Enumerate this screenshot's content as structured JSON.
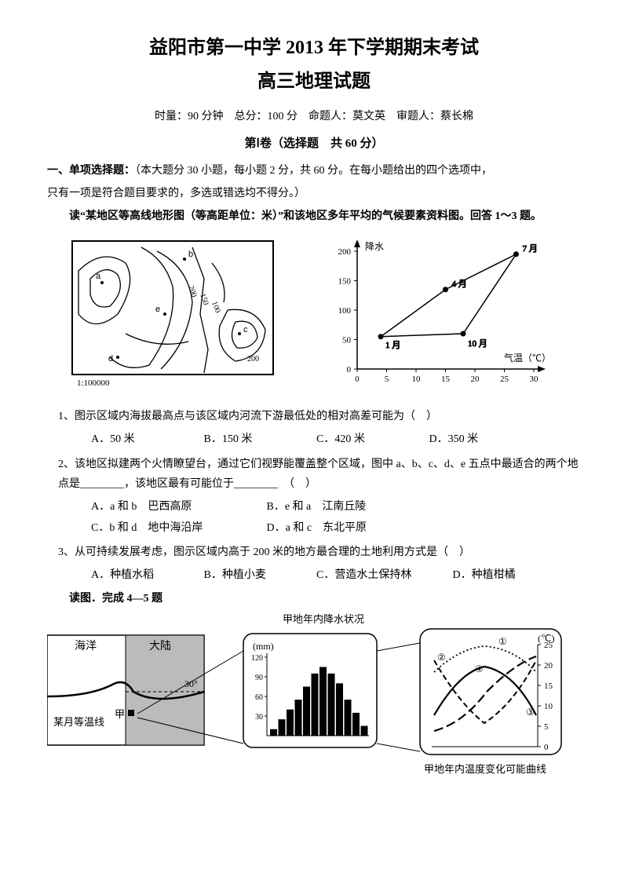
{
  "header": {
    "title_main": "益阳市第一中学 2013 年下学期期末考试",
    "title_sub": "高三地理试题",
    "meta": "时量：90 分钟　总分：100 分　命题人：莫文英　审题人：蔡长棉",
    "section": "第Ⅰ卷（选择题　共 60 分）"
  },
  "part1": {
    "heading": "一、单项选择题：",
    "desc1": "（本大题分 30 小题，每小题 2 分，共 60 分。在每小题给出的四个选项中，",
    "desc2": "只有一项是符合题目要求的，多选或错选均不得分。）",
    "intro_q13": "读“某地区等高线地形图（等高距单位：米）”和该地区多年平均的气候要素资料图。回答 1～3 题。"
  },
  "topo": {
    "contour_labels": [
      "200",
      "150",
      "100",
      "200"
    ],
    "points": [
      "a",
      "b",
      "c",
      "d",
      "e"
    ],
    "scale": "1:100000"
  },
  "climate_chart": {
    "y_label": "降水",
    "y_ticks": [
      0,
      50,
      100,
      150,
      200
    ],
    "x_label": "气温（℃）",
    "x_ticks": [
      0,
      5,
      10,
      15,
      20,
      25,
      30
    ],
    "points": [
      {
        "label": "1 月",
        "x": 4,
        "y": 55
      },
      {
        "label": "4 月",
        "x": 15,
        "y": 135
      },
      {
        "label": "7 月",
        "x": 27,
        "y": 195
      },
      {
        "label": "10 月",
        "x": 18,
        "y": 60
      }
    ],
    "line_color": "#000"
  },
  "q1": {
    "text": "1、图示区域内海拔最高点与该区域内河流下游最低处的相对高差可能为（　）",
    "A": "A．50 米",
    "B": "B．150 米",
    "C": "C．420 米",
    "D": "D．350 米"
  },
  "q2": {
    "text": "2、该地区拟建两个火情瞭望台，通过它们视野能覆盖整个区域，图中 a、b、c、d、e 五点中最适合的两个地点是________，该地区最有可能位于________　（　）",
    "A": "A．a 和 b　巴西高原",
    "B": "B．e 和 a　江南丘陵",
    "C": "C．b 和 d　地中海沿岸",
    "D": "D．a 和 c　东北平原"
  },
  "q3": {
    "text": "3、从可持续发展考虑，图示区域内高于 200 米的地方最合理的土地利用方式是（　）",
    "A": "A．种植水稻",
    "B": "B．种植小麦",
    "C": "C．营造水土保持林",
    "D": "D．种植柑橘"
  },
  "intro_q45": "读图．完成 4—5 题",
  "fig3": {
    "left_labels": {
      "ocean": "海洋",
      "land": "大陆",
      "isotherm": "某月等温线",
      "jia": "甲",
      "lat": "30°"
    },
    "mid_title": "甲地年内降水状况",
    "mid_unit": "(mm)",
    "mid_yticks": [
      120,
      90,
      60,
      30
    ],
    "bars": [
      10,
      25,
      40,
      55,
      75,
      95,
      105,
      95,
      80,
      55,
      35,
      15
    ],
    "bar_color": "#000",
    "right_unit": "(℃)",
    "right_yticks": [
      25,
      20,
      15,
      10,
      5,
      0
    ],
    "right_caption": "甲地年内温度变化可能曲线",
    "curves": [
      "①",
      "②",
      "③",
      "④"
    ]
  }
}
